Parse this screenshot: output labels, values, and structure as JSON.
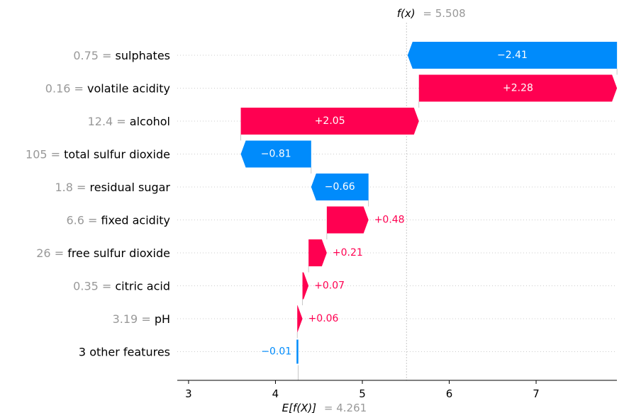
{
  "chart_data": {
    "type": "waterfall",
    "title": "",
    "xlabel": "",
    "ylabel": "",
    "xlim": [
      2.87,
      7.93
    ],
    "x_ticks": [
      3,
      4,
      5,
      6,
      7
    ],
    "x_tick_labels": [
      "3",
      "4",
      "5",
      "6",
      "7"
    ],
    "fx": {
      "label_prefix": "f(x)",
      "label_value": "= 5.508",
      "value": 5.508
    },
    "base": {
      "label_prefix": "E[f(X)]",
      "label_value": "= 4.261",
      "value": 4.261
    },
    "features": [
      {
        "value_text": "0.75 =",
        "name": "sulphates",
        "contribution": -2.41,
        "label": "−2.41"
      },
      {
        "value_text": "0.16 =",
        "name": "volatile acidity",
        "contribution": 2.28,
        "label": "+2.28"
      },
      {
        "value_text": "12.4 =",
        "name": "alcohol",
        "contribution": 2.05,
        "label": "+2.05"
      },
      {
        "value_text": "105 =",
        "name": "total sulfur dioxide",
        "contribution": -0.81,
        "label": "−0.81"
      },
      {
        "value_text": "1.8 =",
        "name": "residual sugar",
        "contribution": -0.66,
        "label": "−0.66"
      },
      {
        "value_text": "6.6 =",
        "name": "fixed acidity",
        "contribution": 0.48,
        "label": "+0.48"
      },
      {
        "value_text": "26 =",
        "name": "free sulfur dioxide",
        "contribution": 0.21,
        "label": "+0.21"
      },
      {
        "value_text": "0.35 =",
        "name": "citric acid",
        "contribution": 0.07,
        "label": "+0.07"
      },
      {
        "value_text": "3.19 =",
        "name": "pH",
        "contribution": 0.06,
        "label": "+0.06"
      },
      {
        "value_text": "",
        "name": "3 other features",
        "contribution": -0.01,
        "label": "−0.01"
      }
    ],
    "colors": {
      "positive": "#ff0051",
      "negative": "#008bfb",
      "muted": "#999999",
      "grid": "#cccccc"
    }
  }
}
